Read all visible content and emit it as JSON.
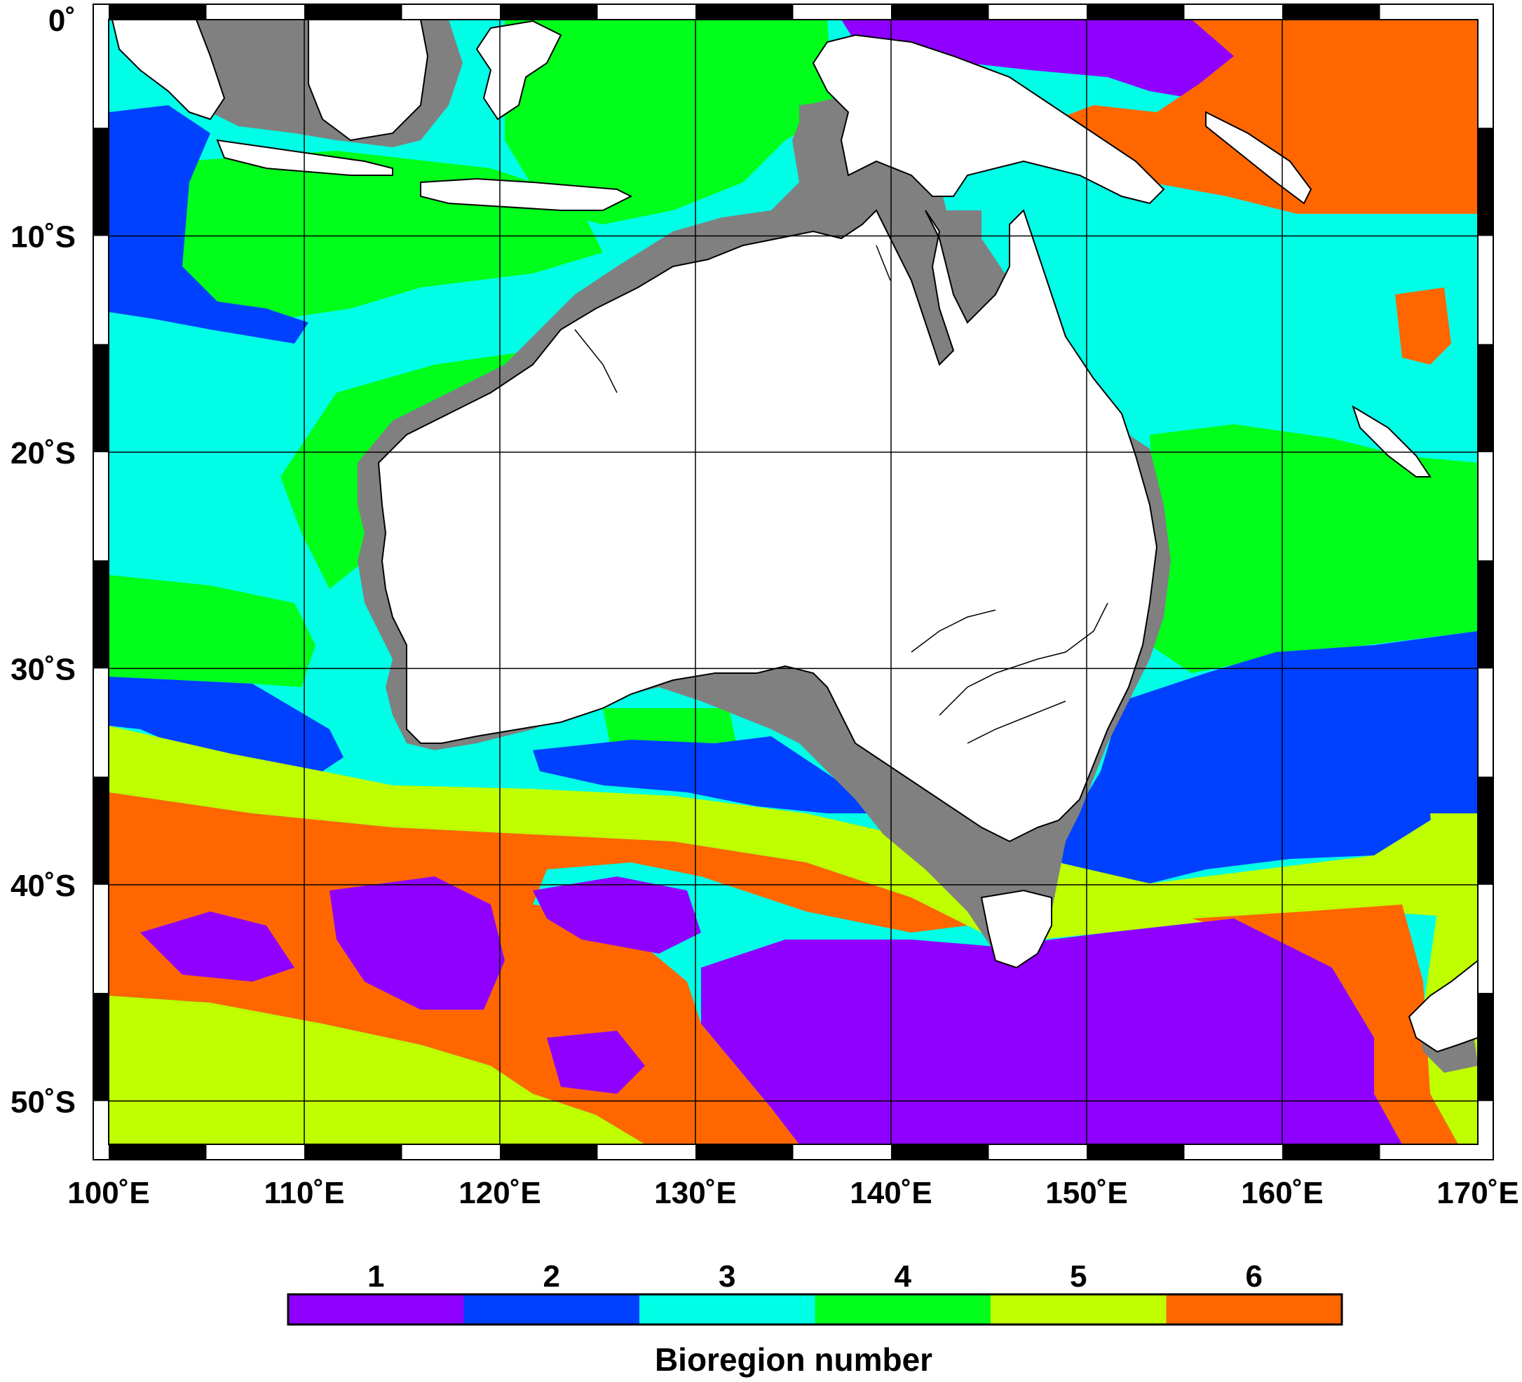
{
  "map": {
    "lon_range": [
      100,
      170
    ],
    "lat_range": [
      0,
      -52
    ],
    "lon_ticks": [
      {
        "value": 100,
        "label": "100˚E"
      },
      {
        "value": 110,
        "label": "110˚E"
      },
      {
        "value": 120,
        "label": "120˚E"
      },
      {
        "value": 130,
        "label": "130˚E"
      },
      {
        "value": 140,
        "label": "140˚E"
      },
      {
        "value": 150,
        "label": "150˚E"
      },
      {
        "value": 160,
        "label": "160˚E"
      },
      {
        "value": 170,
        "label": "170˚E"
      }
    ],
    "lat_ticks": [
      {
        "value": 0,
        "label": "0˚"
      },
      {
        "value": -10,
        "label": "10˚S"
      },
      {
        "value": -20,
        "label": "20˚S"
      },
      {
        "value": -30,
        "label": "30˚S"
      },
      {
        "value": -40,
        "label": "40˚S"
      },
      {
        "value": -50,
        "label": "50˚S"
      }
    ],
    "colors": {
      "land": "#ffffff",
      "shelf": "#808080",
      "coastline": "#000000"
    }
  },
  "legend": {
    "title": "Bioregion number",
    "classes": [
      {
        "number": "1",
        "color": "#8f00ff"
      },
      {
        "number": "2",
        "color": "#0040ff"
      },
      {
        "number": "3",
        "color": "#00ffe6"
      },
      {
        "number": "4",
        "color": "#00ff1a"
      },
      {
        "number": "5",
        "color": "#bfff00"
      },
      {
        "number": "6",
        "color": "#ff6600"
      }
    ]
  }
}
